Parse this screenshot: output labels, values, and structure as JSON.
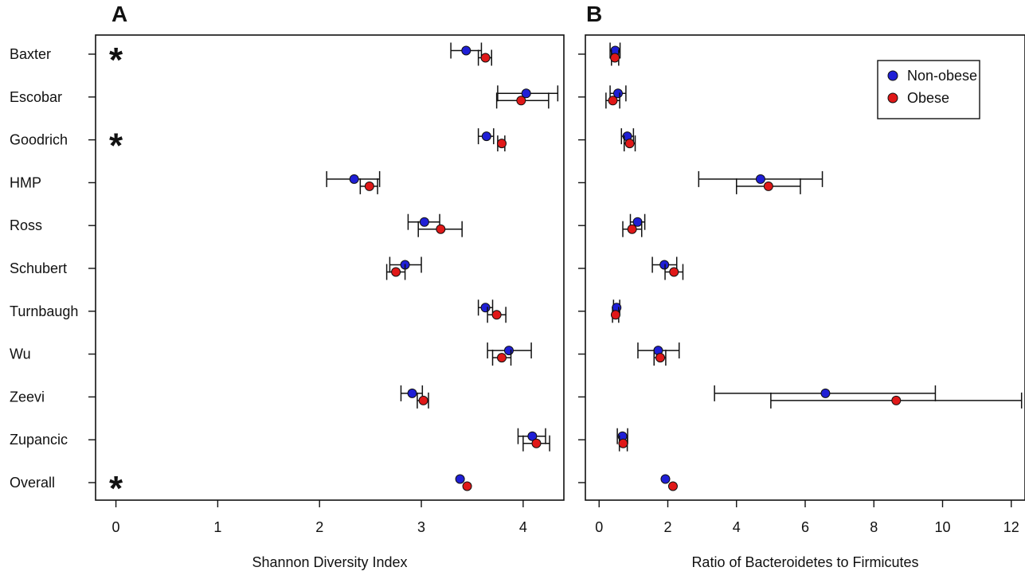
{
  "chart_data": [
    {
      "type": "scatter",
      "panel_label": "A",
      "xlabel": "Shannon Diversity Index",
      "xlim": [
        -0.2,
        4.4
      ],
      "xticks": [
        0,
        1,
        2,
        3,
        4
      ],
      "categories": [
        "Baxter",
        "Escobar",
        "Goodrich",
        "HMP",
        "Ross",
        "Schubert",
        "Turnbaugh",
        "Wu",
        "Zeevi",
        "Zupancic",
        "Overall"
      ],
      "significance_marker": "*",
      "significant": [
        "Baxter",
        "Goodrich",
        "Overall"
      ],
      "series": [
        {
          "name": "Non-obese",
          "color": "#1f1fd6",
          "values": [
            3.44,
            4.03,
            3.64,
            2.34,
            3.03,
            2.84,
            3.63,
            3.86,
            2.91,
            4.09,
            3.38
          ],
          "ci_low": [
            3.29,
            3.75,
            3.56,
            2.07,
            2.87,
            2.69,
            3.56,
            3.65,
            2.8,
            3.95,
            null
          ],
          "ci_high": [
            3.59,
            4.34,
            3.71,
            2.59,
            3.18,
            3.0,
            3.7,
            4.08,
            3.01,
            4.22,
            null
          ]
        },
        {
          "name": "Obese",
          "color": "#e01818",
          "values": [
            3.63,
            3.98,
            3.79,
            2.49,
            3.19,
            2.75,
            3.74,
            3.79,
            3.02,
            4.13,
            3.45
          ],
          "ci_low": [
            3.56,
            3.74,
            3.75,
            2.4,
            2.97,
            2.66,
            3.65,
            3.7,
            2.96,
            4.0,
            null
          ],
          "ci_high": [
            3.69,
            4.25,
            3.82,
            2.57,
            3.4,
            2.84,
            3.83,
            3.88,
            3.07,
            4.26,
            null
          ]
        }
      ]
    },
    {
      "type": "scatter",
      "panel_label": "B",
      "xlabel": "Ratio of Bacteroidetes to Firmicutes",
      "xlim": [
        -0.4,
        12.4
      ],
      "xticks": [
        0,
        2,
        4,
        6,
        8,
        10,
        12
      ],
      "categories": [
        "Baxter",
        "Escobar",
        "Goodrich",
        "HMP",
        "Ross",
        "Schubert",
        "Turnbaugh",
        "Wu",
        "Zeevi",
        "Zupancic",
        "Overall"
      ],
      "legend": {
        "position": "top-right",
        "entries": [
          "Non-obese",
          "Obese"
        ]
      },
      "series": [
        {
          "name": "Non-obese",
          "color": "#1f1fd6",
          "values": [
            0.47,
            0.55,
            0.82,
            4.7,
            1.12,
            1.9,
            0.51,
            1.72,
            6.59,
            0.68,
            1.93
          ],
          "ci_low": [
            0.32,
            0.32,
            0.65,
            2.9,
            0.91,
            1.55,
            0.42,
            1.13,
            3.36,
            0.53,
            null
          ],
          "ci_high": [
            0.61,
            0.78,
            1.0,
            6.5,
            1.33,
            2.26,
            0.6,
            2.33,
            9.79,
            0.83,
            null
          ]
        },
        {
          "name": "Obese",
          "color": "#e01818",
          "values": [
            0.46,
            0.4,
            0.89,
            4.93,
            0.96,
            2.18,
            0.48,
            1.78,
            8.65,
            0.7,
            2.15
          ],
          "ci_low": [
            0.36,
            0.2,
            0.73,
            4.0,
            0.69,
            1.92,
            0.39,
            1.6,
            5.0,
            0.59,
            null
          ],
          "ci_high": [
            0.57,
            0.6,
            1.05,
            5.86,
            1.24,
            2.44,
            0.57,
            1.94,
            12.3,
            0.82,
            null
          ]
        }
      ]
    }
  ]
}
